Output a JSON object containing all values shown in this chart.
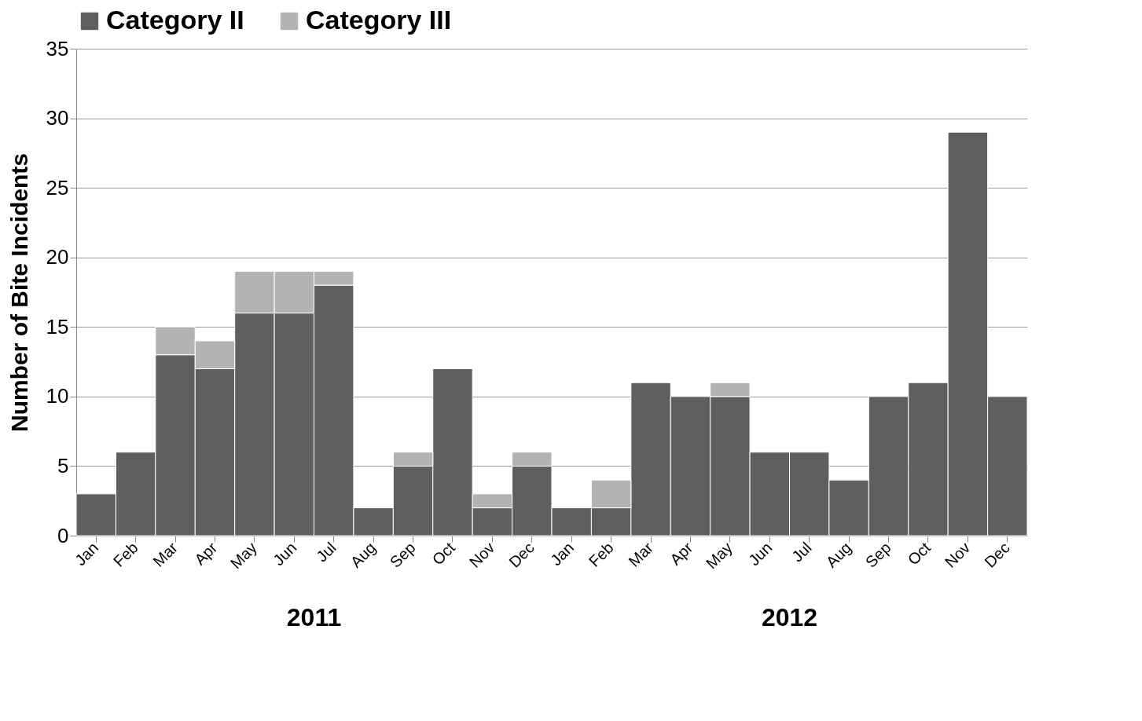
{
  "chart_data": {
    "type": "bar",
    "stacked": true,
    "ylabel": "Number of Bite Incidents",
    "categories": [
      "Jan",
      "Feb",
      "Mar",
      "Apr",
      "May",
      "Jun",
      "Jul",
      "Aug",
      "Sep",
      "Oct",
      "Nov",
      "Dec",
      "Jan",
      "Feb",
      "Mar",
      "Apr",
      "May",
      "Jun",
      "Jul",
      "Aug",
      "Sep",
      "Oct",
      "Nov",
      "Dec"
    ],
    "series": [
      {
        "name": "Category II",
        "color": "#5f5f5f",
        "values": [
          3,
          6,
          13,
          12,
          16,
          16,
          18,
          2,
          5,
          12,
          2,
          5,
          2,
          2,
          11,
          10,
          10,
          6,
          6,
          4,
          10,
          11,
          29,
          10
        ]
      },
      {
        "name": "Category III",
        "color": "#b3b3b3",
        "values": [
          0,
          0,
          2,
          2,
          3,
          3,
          1,
          0,
          1,
          0,
          1,
          1,
          0,
          2,
          0,
          0,
          1,
          0,
          0,
          0,
          0,
          0,
          0,
          0
        ]
      }
    ],
    "ylim": [
      0,
      35
    ],
    "yticks": [
      0,
      5,
      10,
      15,
      20,
      25,
      30,
      35
    ],
    "grid": "y",
    "legend": "top",
    "annotations": [
      "2011",
      "2012"
    ]
  }
}
